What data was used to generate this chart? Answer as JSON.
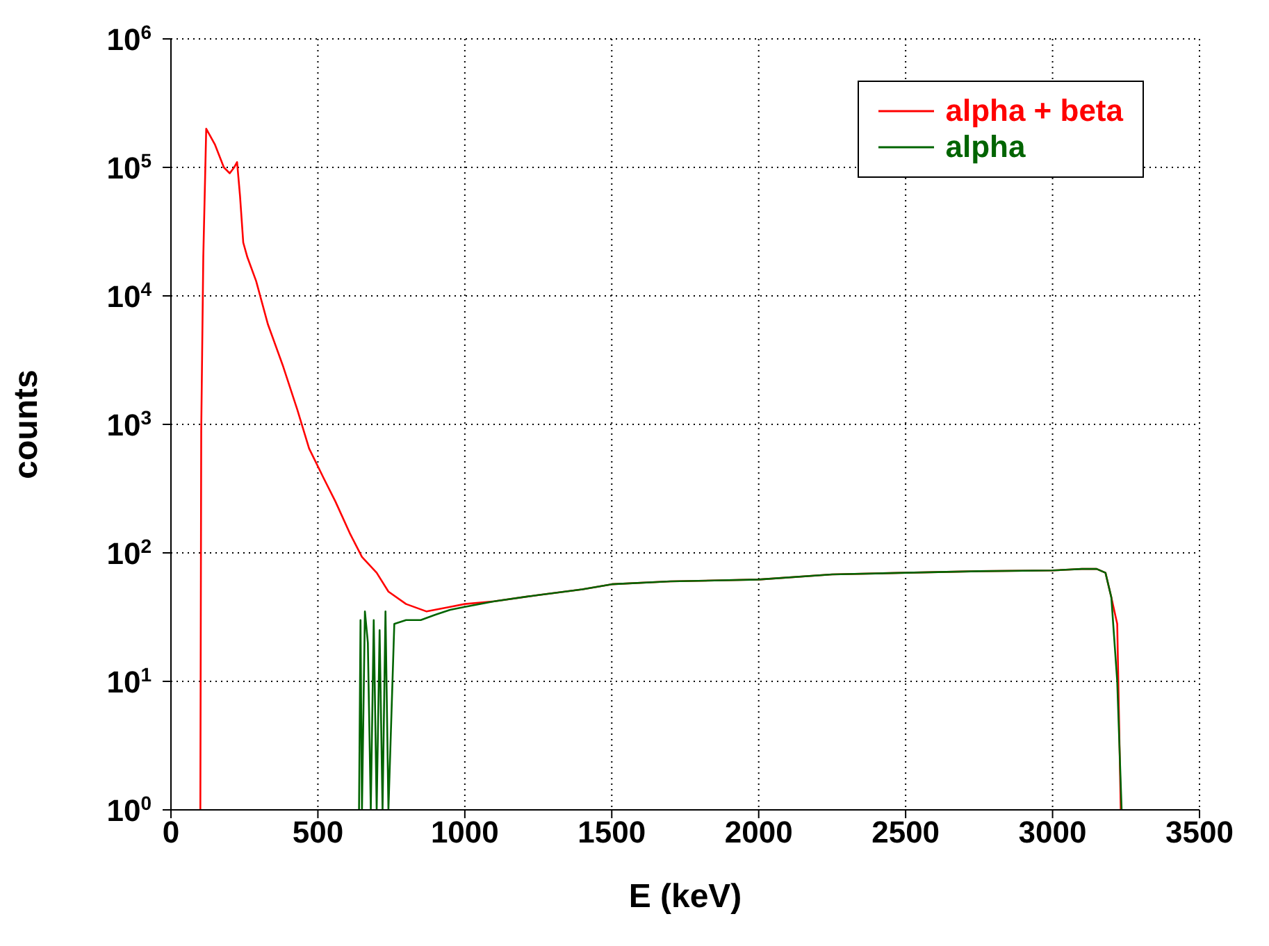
{
  "chart_data": {
    "type": "line",
    "xlabel": "E (keV)",
    "ylabel": "counts",
    "log": "y",
    "grid": true,
    "legend": "top right",
    "marker": "none",
    "line_style": "solid",
    "xlim": [
      0,
      3500
    ],
    "xticks": [
      0,
      500,
      1000,
      1500,
      2000,
      2500,
      3000,
      3500
    ],
    "ylim": [
      1,
      1000000
    ],
    "yticks": [
      {
        "value": 1,
        "label": "10$^{0}$"
      },
      {
        "value": 10,
        "label": "10$^{1}$"
      },
      {
        "value": 100,
        "label": "10$^{2}$"
      },
      {
        "value": 1000,
        "label": "10$^{3}$"
      },
      {
        "value": 10000,
        "label": "10$^{4}$"
      },
      {
        "value": 100000,
        "label": "10$^{5}$"
      },
      {
        "value": 1000000,
        "label": "10$^{6}$"
      }
    ],
    "series": [
      {
        "name": "alpha + beta",
        "color": "#ff0000",
        "x": [
          100,
          103,
          110,
          120,
          150,
          180,
          200,
          215,
          225,
          235,
          246,
          260,
          290,
          330,
          380,
          430,
          470,
          520,
          560,
          610,
          650,
          700,
          740,
          800,
          870,
          950,
          1000,
          1100,
          1250,
          1400,
          1500,
          1700,
          2000,
          2250,
          2500,
          2750,
          3000,
          3100,
          3150,
          3180,
          3200,
          3220,
          3232
        ],
        "values": [
          1,
          900,
          20000,
          200000,
          150000,
          100000,
          90000,
          100000,
          110000,
          60000,
          26000,
          20000,
          13000,
          6000,
          2900,
          1300,
          650,
          380,
          250,
          140,
          93,
          70,
          50,
          40,
          35,
          38,
          40,
          42,
          47,
          52,
          57,
          60,
          62,
          68,
          70,
          72,
          73,
          75,
          75,
          70,
          45,
          28,
          1
        ]
      },
      {
        "name": "alpha",
        "color": "#006400",
        "x": [
          640,
          645,
          650,
          660,
          670,
          680,
          690,
          700,
          710,
          720,
          730,
          740,
          760,
          800,
          850,
          900,
          950,
          1000,
          1100,
          1250,
          1400,
          1500,
          1700,
          2000,
          2250,
          2500,
          2750,
          3000,
          3100,
          3150,
          3180,
          3200,
          3220,
          3235
        ],
        "values": [
          1,
          30,
          1,
          35,
          20,
          1,
          30,
          1,
          25,
          1,
          35,
          1,
          28,
          30,
          30,
          33,
          36,
          38,
          42,
          47,
          52,
          57,
          60,
          62,
          68,
          70,
          72,
          73,
          75,
          75,
          70,
          45,
          10,
          1
        ]
      }
    ]
  }
}
